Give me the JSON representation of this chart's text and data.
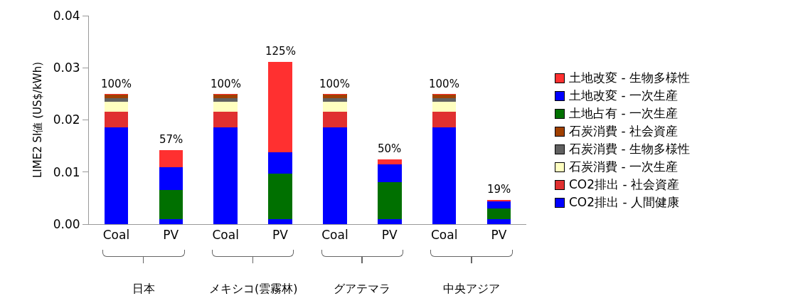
{
  "chart_data": {
    "type": "bar",
    "stacked": true,
    "ylabel": "LIME2 SI値 (US$/kWh)",
    "categories": [
      "Coal",
      "PV",
      "Coal",
      "PV",
      "Coal",
      "PV",
      "Coal",
      "PV"
    ],
    "series": [
      {
        "name": "CO2排出 - 人間健康",
        "color": "#0000ff",
        "values": [
          0.0186,
          0.0011,
          0.0186,
          0.0011,
          0.0186,
          0.0011,
          0.0186,
          0.0011
        ]
      },
      {
        "name": "CO2排出 - 社会資産",
        "color": "#e03030",
        "values": [
          0.0031,
          null,
          0.0031,
          null,
          0.0031,
          null,
          0.0031,
          null
        ]
      },
      {
        "name": "石炭消費 - 一次生産",
        "color": "#ffffc0",
        "values": [
          0.0018,
          0,
          0.0018,
          0,
          0.0018,
          0,
          0.0018,
          0
        ]
      },
      {
        "name": "石炭消費 - 生物多様性",
        "color": "#606060",
        "values": [
          0.0008,
          0,
          0.0008,
          0,
          0.0008,
          0,
          0.0008,
          0
        ]
      },
      {
        "name": "石炭消費 - 社会資産",
        "color": "#a04000",
        "values": [
          0.0006,
          0,
          0.0006,
          0,
          0.0006,
          0,
          0.0006,
          0
        ]
      },
      {
        "name": "土地占有 - 一次生産",
        "color": "#007000",
        "values": [
          0,
          0.0056,
          0,
          0.0087,
          0,
          0.007,
          0,
          0.002
        ]
      },
      {
        "name": "土地改変 - 一次生産",
        "color": "#0000ff",
        "values": [
          0,
          0.0043,
          0,
          0.0041,
          0,
          0.0034,
          0,
          0.0013
        ]
      },
      {
        "name": "土地改変 - 生物多様性",
        "color": "#ff3030",
        "values": [
          0,
          0.0031,
          0,
          0.0171,
          0,
          0.0008,
          0,
          0.0002
        ]
      }
    ],
    "annotations": [
      {
        "text": "100%",
        "y": 0.0249
      },
      {
        "text": "57%",
        "y": 0.0142
      },
      {
        "text": "100%",
        "y": 0.0249
      },
      {
        "text": "125%",
        "y": 0.0311
      },
      {
        "text": "100%",
        "y": 0.0249
      },
      {
        "text": "50%",
        "y": 0.0124
      },
      {
        "text": "100%",
        "y": 0.0249
      },
      {
        "text": "19%",
        "y": 0.0047
      },
      "日本",
      "メキシコ(雲霧林)",
      "グアテマラ",
      "中央アジア"
    ],
    "ylim": [
      0,
      0.04
    ],
    "yticks": [
      {
        "value": 0,
        "label": "0.00"
      },
      {
        "value": 0.01,
        "label": "0.01"
      },
      {
        "value": 0.02,
        "label": "0.02"
      },
      {
        "value": 0.03,
        "label": "0.03"
      },
      {
        "value": 0.04,
        "label": "0.04"
      }
    ],
    "grid": false,
    "legend": "right"
  }
}
